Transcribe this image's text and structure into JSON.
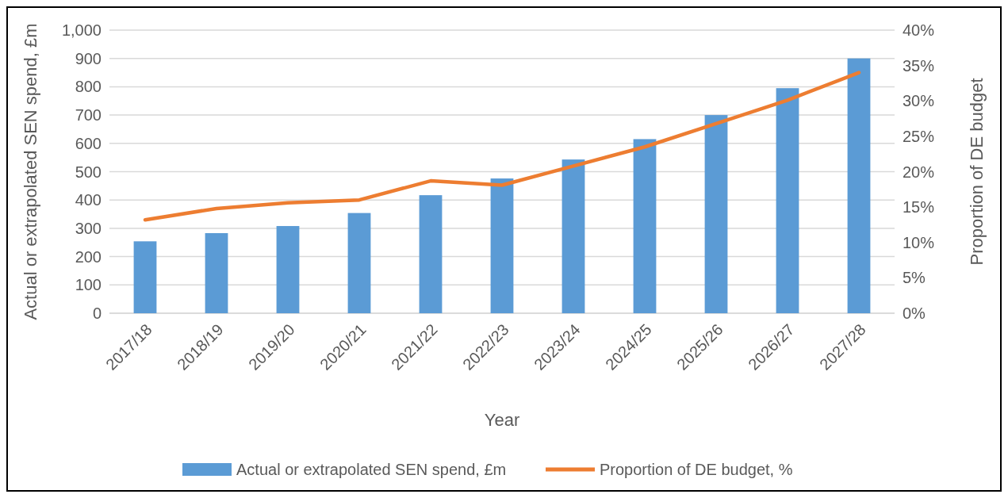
{
  "chart_data": {
    "type": "bar",
    "xlabel": "Year",
    "ylabel": "Actual or extrapolated SEN spend, £m",
    "y2label": "Proportion of DE budget",
    "categories": [
      "2017/18",
      "2018/19",
      "2019/20",
      "2020/21",
      "2021/22",
      "2022/23",
      "2023/24",
      "2024/25",
      "2025/26",
      "2026/27",
      "2027/28"
    ],
    "series": [
      {
        "name": "Actual or extrapolated SEN spend, £m",
        "color": "#5b9bd5",
        "values": [
          254,
          283,
          308,
          354,
          417,
          476,
          543,
          615,
          700,
          795,
          900
        ]
      },
      {
        "name": "Proportion of DE budget, %",
        "type": "line",
        "axis": "y2",
        "color": "#ed7d31",
        "values": [
          13.2,
          14.8,
          15.6,
          16.0,
          18.7,
          18.1,
          20.8,
          23.5,
          26.8,
          30.1,
          34.0
        ]
      }
    ],
    "ylim": [
      0,
      1000
    ],
    "yticks": [
      0,
      {
        "value": 100,
        "label": "100"
      },
      {
        "value": 200,
        "label": "200"
      },
      {
        "value": 300,
        "label": "300"
      },
      {
        "value": 400,
        "label": "400"
      },
      {
        "value": 500,
        "label": "500"
      },
      {
        "value": 600,
        "label": "600"
      },
      {
        "value": 700,
        "label": "700"
      },
      {
        "value": 800,
        "label": "800"
      },
      {
        "value": 900,
        "label": "900"
      },
      {
        "value": 1000,
        "label": "1,000"
      }
    ],
    "y2lim": [
      0,
      40
    ],
    "y2ticks": [
      {
        "value": 0,
        "label": "0%"
      },
      {
        "value": 5,
        "label": "5%"
      },
      {
        "value": 10,
        "label": "10%"
      },
      {
        "value": 15,
        "label": "15%"
      },
      {
        "value": 20,
        "label": "20%"
      },
      {
        "value": 25,
        "label": "25%"
      },
      {
        "value": 30,
        "label": "30%"
      },
      {
        "value": 35,
        "label": "35%"
      },
      {
        "value": 40,
        "label": "40%"
      }
    ],
    "grid": "y",
    "legend": "bottom",
    "marker": "none"
  }
}
